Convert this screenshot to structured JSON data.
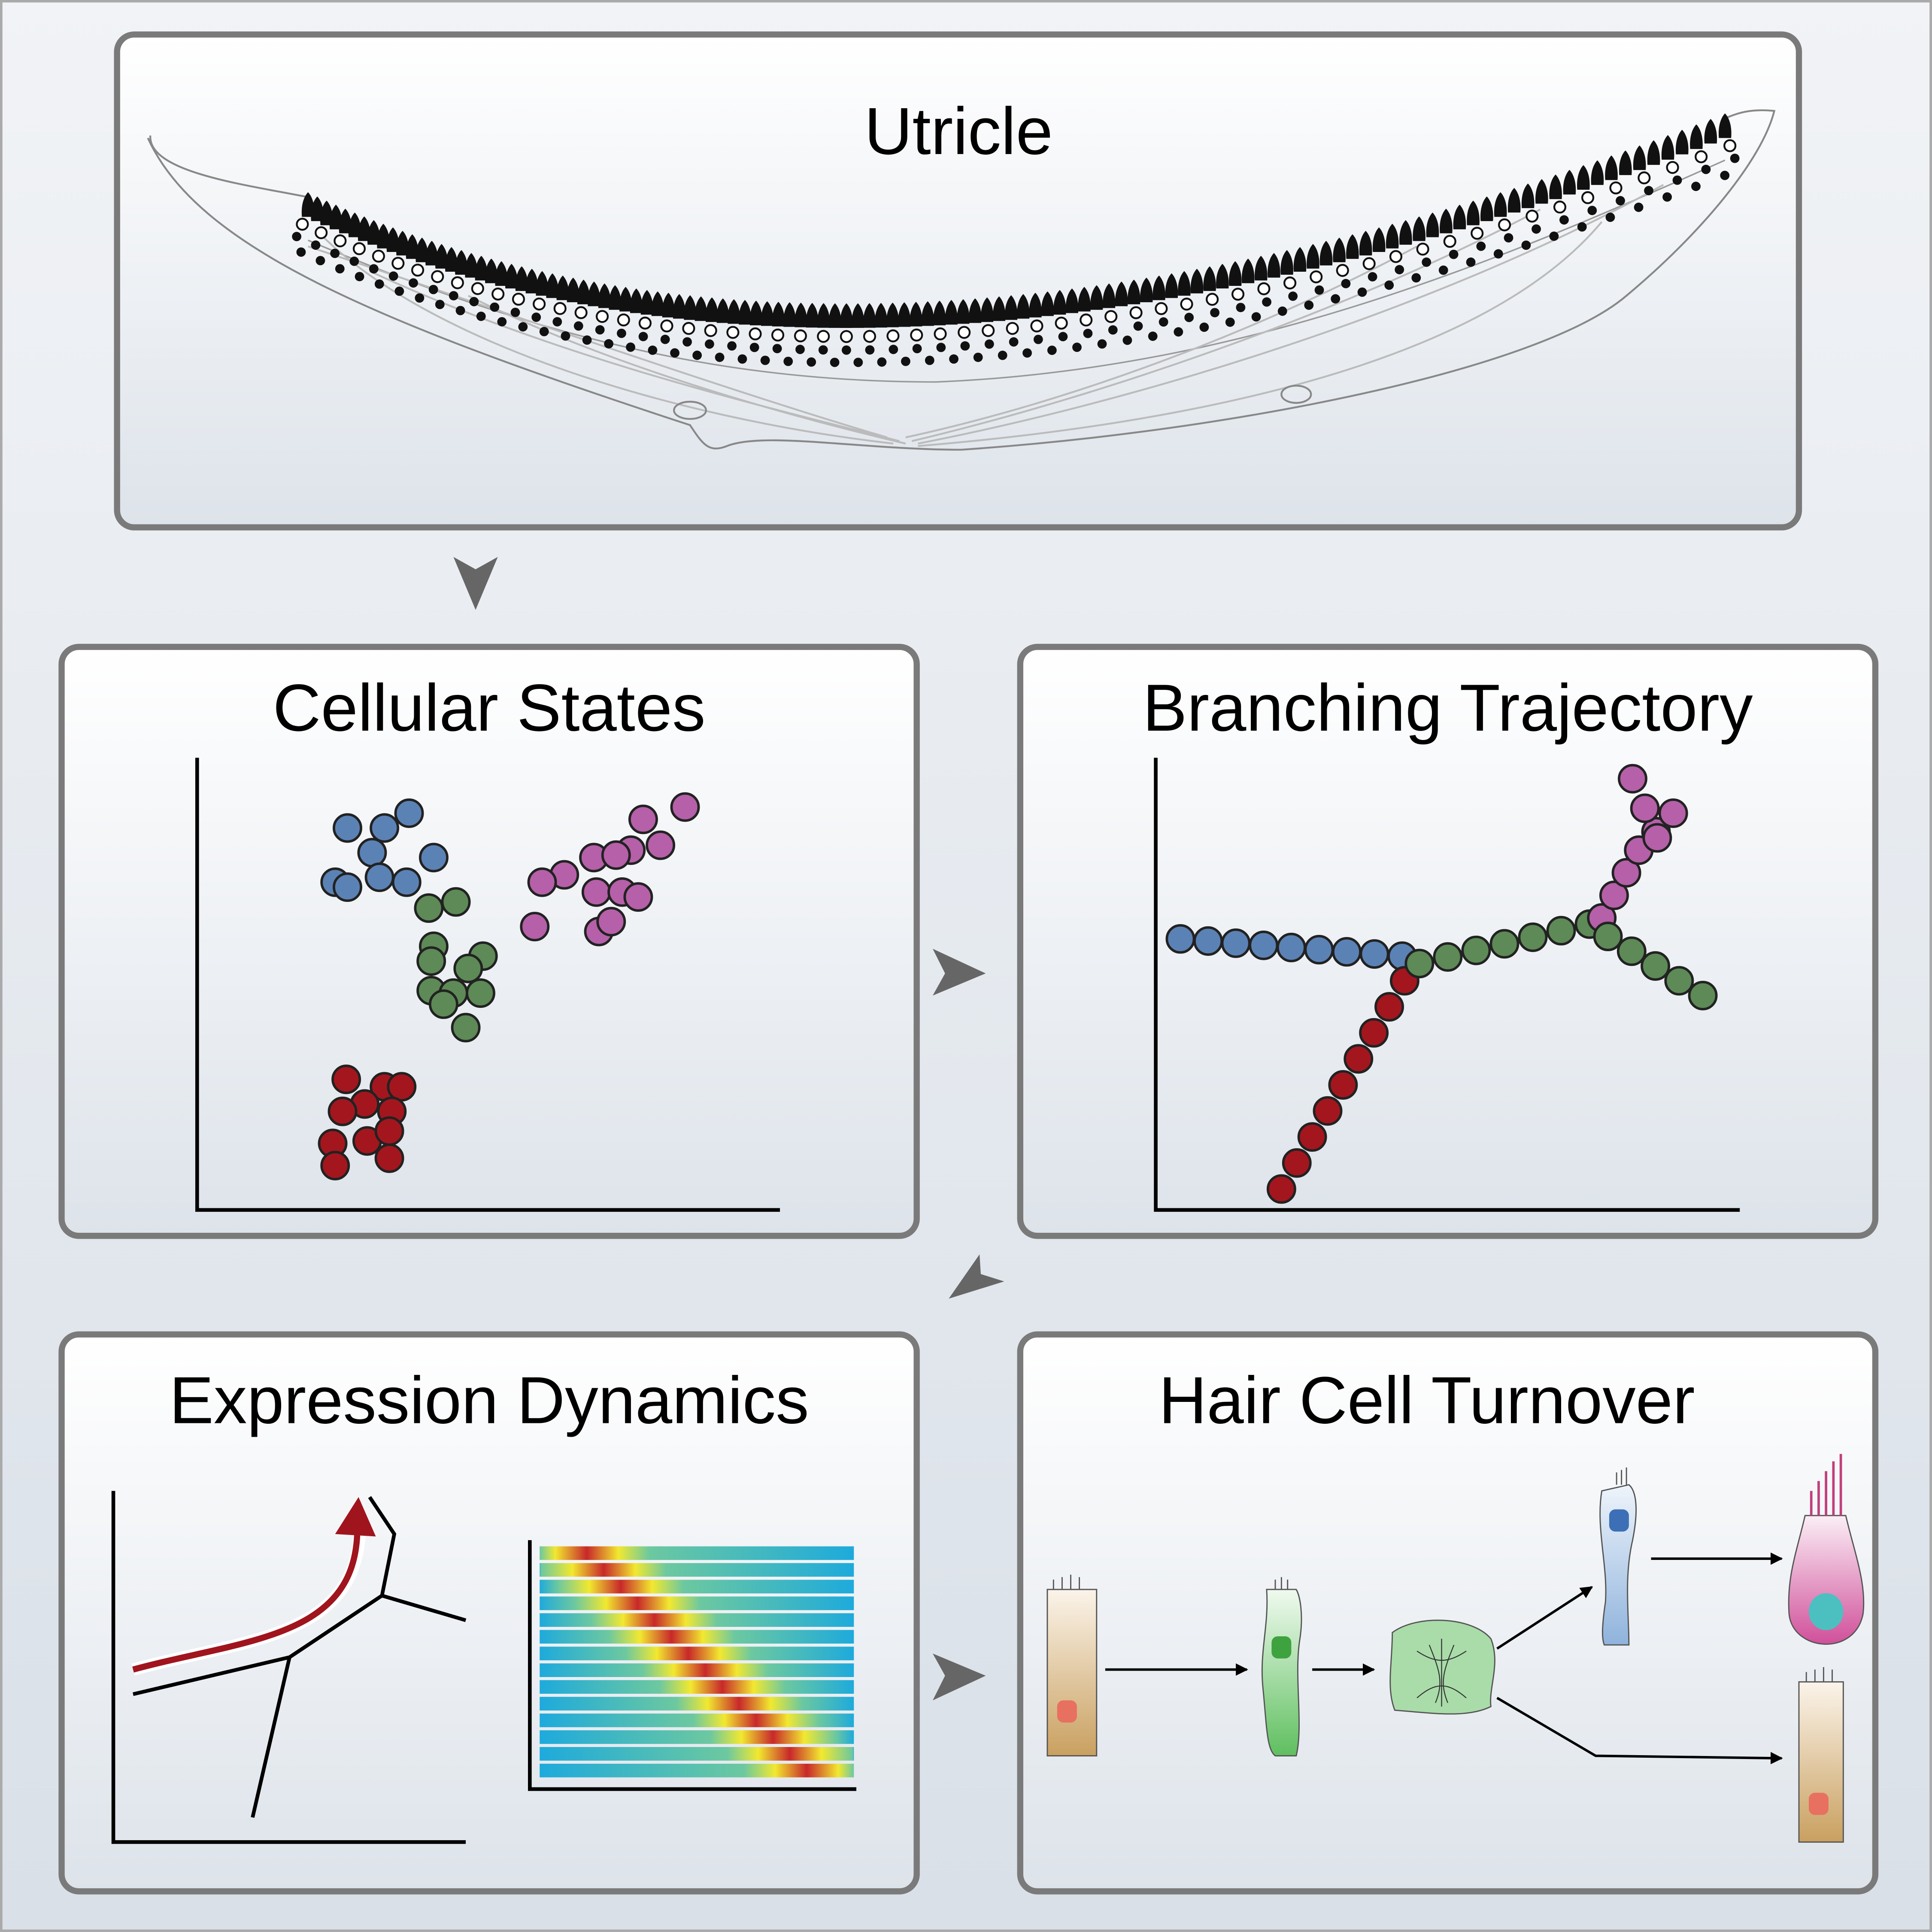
{
  "panels": [
    {
      "title": "Utricle"
    },
    {
      "title": "Cellular States"
    },
    {
      "title": "Branching Trajectory"
    },
    {
      "title": "Expression Dynamics"
    },
    {
      "title": "Hair Cell Turnover"
    }
  ]
}
